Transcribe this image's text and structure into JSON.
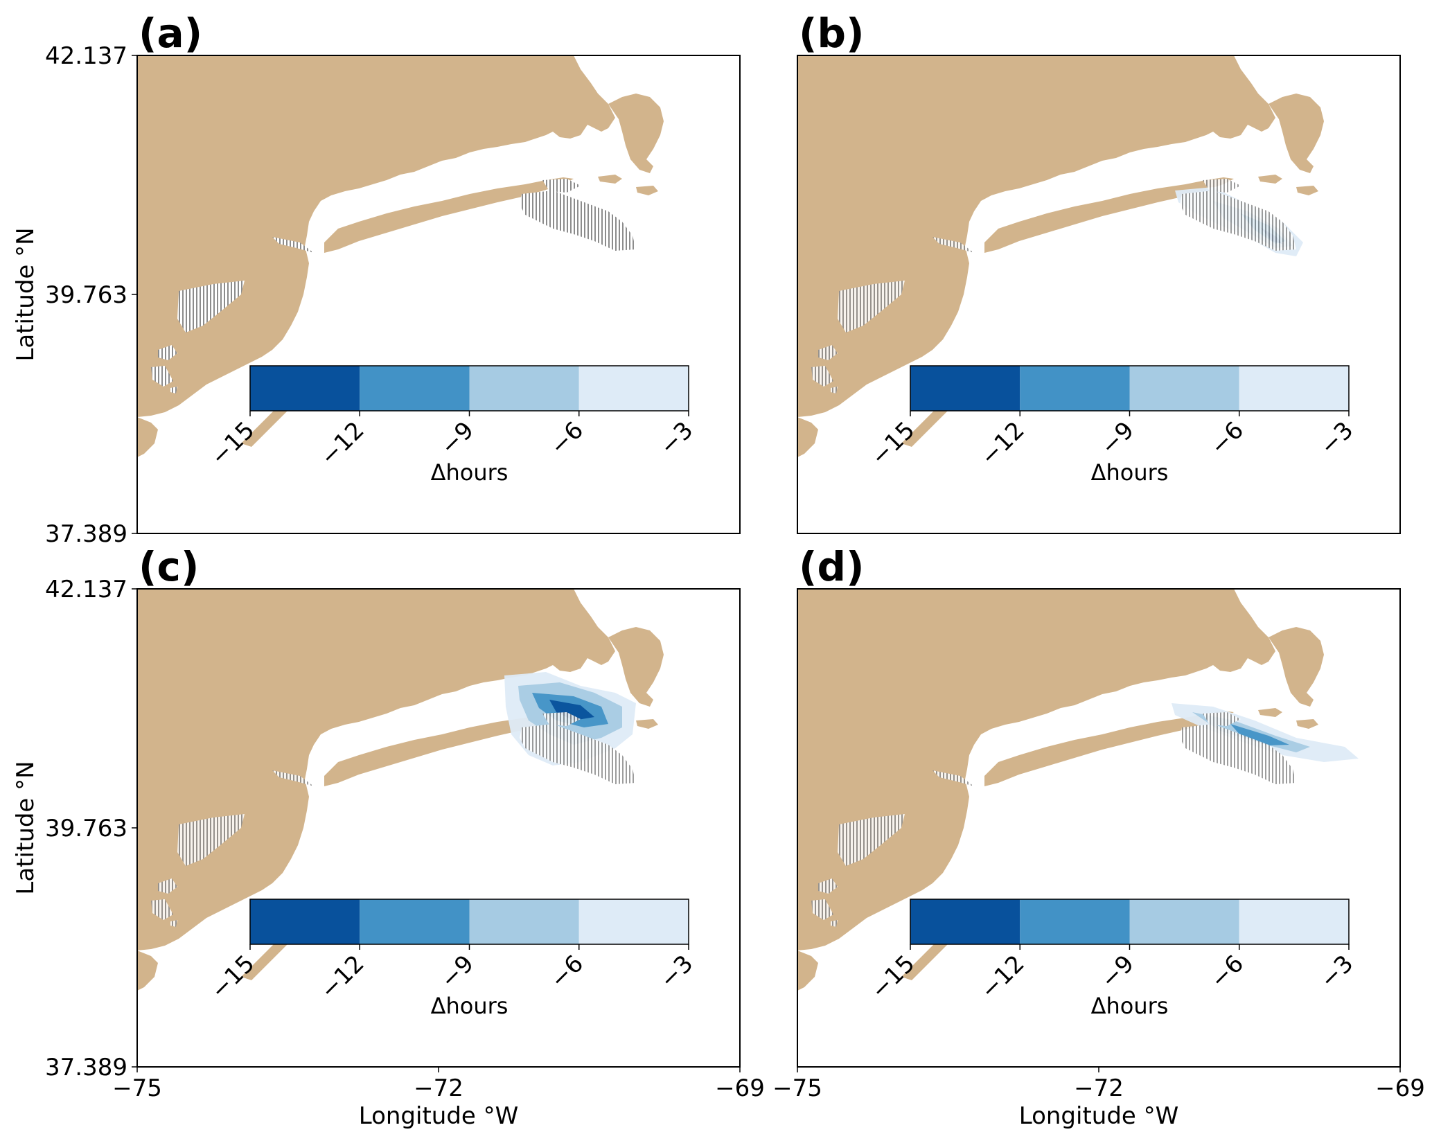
{
  "panels": [
    {
      "label": "(a)"
    },
    {
      "label": "(b)"
    },
    {
      "label": "(c)"
    },
    {
      "label": "(d)"
    }
  ],
  "axes": {
    "xlabel": "Longitude °W",
    "ylabel": "Latitude °N",
    "xticks": [
      "−75",
      "−72",
      "−69"
    ],
    "yticks": [
      "42.137",
      "39.763",
      "37.389"
    ]
  },
  "colorbar": {
    "label": "Δhours",
    "ticks": [
      "−15",
      "−12",
      "−9",
      "−6",
      "−3"
    ],
    "colors": [
      "#08519c",
      "#4292c6",
      "#a6cbe3",
      "#deebf7"
    ]
  },
  "colors": {
    "land": "#d2b48c",
    "wind_farm_hatch": "#8c8c8c"
  },
  "chart_data": {
    "type": "heatmap",
    "description_units": "change in hours",
    "xlim": [
      -75,
      -69
    ],
    "ylim": [
      37.389,
      42.137
    ],
    "levels": [
      -15,
      -12,
      -9,
      -6,
      -3
    ],
    "panels": [
      "(a)",
      "(b)",
      "(c)",
      "(d)"
    ]
  }
}
